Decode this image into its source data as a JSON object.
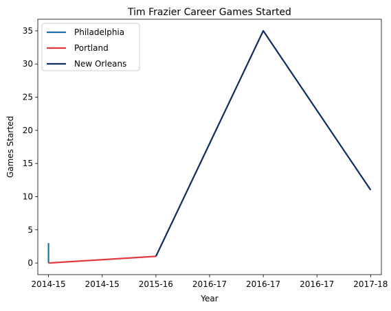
{
  "chart_data": {
    "type": "line",
    "title": "Tim Frazier Career Games Started",
    "xlabel": "Year",
    "ylabel": "Games Started",
    "x_tick_labels": [
      "2014-15",
      "2014-15",
      "2015-16",
      "2016-17",
      "2016-17",
      "2016-17",
      "2017-18"
    ],
    "x_range": [
      -0.2,
      6.2
    ],
    "ylim": [
      -1.75,
      36.75
    ],
    "y_ticks": [
      0,
      5,
      10,
      15,
      20,
      25,
      30,
      35
    ],
    "grid": false,
    "legend_position": "top-left",
    "series": [
      {
        "name": "Philadelphia",
        "color": "#1a6fb0",
        "x": [
          0,
          0
        ],
        "values": [
          3,
          0
        ]
      },
      {
        "name": "Portland",
        "color": "#e03a3e",
        "x": [
          0,
          2
        ],
        "values": [
          0,
          1
        ]
      },
      {
        "name": "New Orleans",
        "color": "#0c2c5a",
        "x": [
          2,
          4,
          6
        ],
        "values": [
          1,
          35,
          11
        ]
      }
    ]
  }
}
